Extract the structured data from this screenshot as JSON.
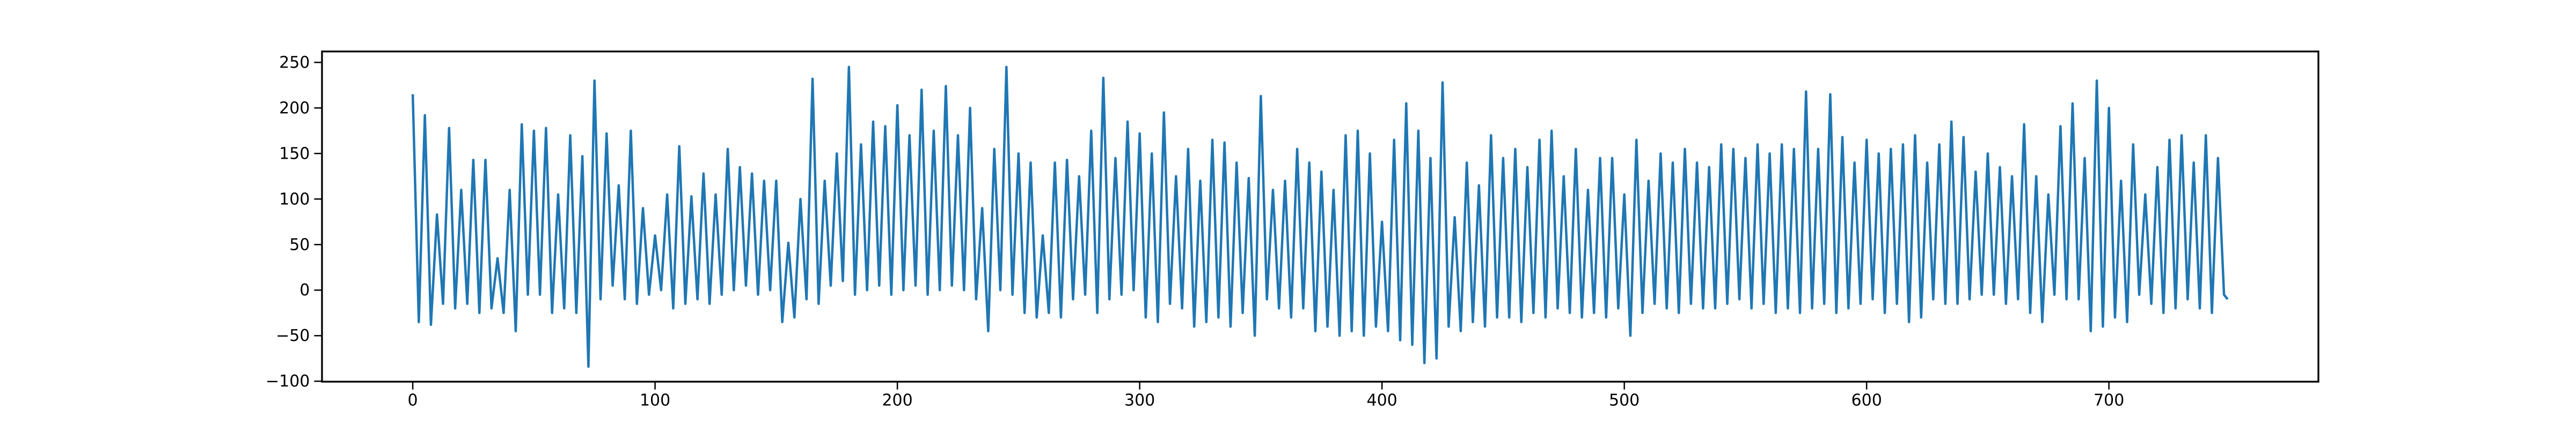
{
  "chart_data": {
    "type": "line",
    "x": [
      0,
      2.5,
      5,
      7.5,
      10,
      12.5,
      15,
      17.5,
      20,
      22.5,
      25,
      27.5,
      30,
      32.5,
      35,
      37.5,
      40,
      42.5,
      45,
      47.5,
      50,
      52.5,
      55,
      57.5,
      60,
      62.5,
      65,
      67.5,
      70,
      72.5,
      75,
      77.5,
      80,
      82.5,
      85,
      87.5,
      90,
      92.5,
      95,
      97.5,
      100,
      102.5,
      105,
      107.5,
      110,
      112.5,
      115,
      117.5,
      120,
      122.5,
      125,
      127.5,
      130,
      132.5,
      135,
      137.5,
      140,
      142.5,
      145,
      147.5,
      150,
      152.5,
      155,
      157.5,
      160,
      162.5,
      165,
      167.5,
      170,
      172.5,
      175,
      177.5,
      180,
      182.5,
      185,
      187.5,
      190,
      192.5,
      195,
      197.5,
      200,
      202.5,
      205,
      207.5,
      210,
      212.5,
      215,
      217.5,
      220,
      222.5,
      225,
      227.5,
      230,
      232.5,
      235,
      237.5,
      240,
      242.5,
      245,
      247.5,
      250,
      252.5,
      255,
      257.5,
      260,
      262.5,
      265,
      267.5,
      270,
      272.5,
      275,
      277.5,
      280,
      282.5,
      285,
      287.5,
      290,
      292.5,
      295,
      297.5,
      300,
      302.5,
      305,
      307.5,
      310,
      312.5,
      315,
      317.5,
      320,
      322.5,
      325,
      327.5,
      330,
      332.5,
      335,
      337.5,
      340,
      342.5,
      345,
      347.5,
      350,
      352.5,
      355,
      357.5,
      360,
      362.5,
      365,
      367.5,
      370,
      372.5,
      375,
      377.5,
      380,
      382.5,
      385,
      387.5,
      390,
      392.5,
      395,
      397.5,
      400,
      402.5,
      405,
      407.5,
      410,
      412.5,
      415,
      417.5,
      420,
      422.5,
      425,
      427.5,
      430,
      432.5,
      435,
      437.5,
      440,
      442.5,
      445,
      447.5,
      450,
      452.5,
      455,
      457.5,
      460,
      462.5,
      465,
      467.5,
      470,
      472.5,
      475,
      477.5,
      480,
      482.5,
      485,
      487.5,
      490,
      492.5,
      495,
      497.5,
      500,
      502.5,
      505,
      507.5,
      510,
      512.5,
      515,
      517.5,
      520,
      522.5,
      525,
      527.5,
      530,
      532.5,
      535,
      537.5,
      540,
      542.5,
      545,
      547.5,
      550,
      552.5,
      555,
      557.5,
      560,
      562.5,
      565,
      567.5,
      570,
      572.5,
      575,
      577.5,
      580,
      582.5,
      585,
      587.5,
      590,
      592.5,
      595,
      597.5,
      600,
      602.5,
      605,
      607.5,
      610,
      612.5,
      615,
      617.5,
      620,
      622.5,
      625,
      627.5,
      630,
      632.5,
      635,
      637.5,
      640,
      642.5,
      645,
      647.5,
      650,
      652.5,
      655,
      657.5,
      660,
      662.5,
      665,
      667.5,
      670,
      672.5,
      675,
      677.5,
      680,
      682.5,
      685,
      687.5,
      690,
      692.5,
      695,
      697.5,
      700,
      702.5,
      705,
      707.5,
      710,
      712.5,
      715,
      717.5,
      720,
      722.5,
      725,
      727.5,
      730,
      732.5,
      735,
      737.5,
      740,
      742.5,
      745,
      747.5,
      749
    ],
    "series": [
      {
        "color": "#1f77b4",
        "values": [
          215,
          -35,
          192,
          -38,
          83,
          -15,
          178,
          -20,
          110,
          -15,
          143,
          -25,
          143,
          -20,
          35,
          -25,
          110,
          -45,
          182,
          -5,
          175,
          -5,
          178,
          -25,
          105,
          -20,
          170,
          -25,
          147,
          -84,
          230,
          -10,
          172,
          5,
          115,
          -10,
          175,
          -15,
          90,
          -5,
          60,
          0,
          105,
          -20,
          158,
          -15,
          103,
          -10,
          128,
          -15,
          105,
          -5,
          155,
          0,
          135,
          5,
          128,
          -5,
          120,
          0,
          120,
          -35,
          52,
          -30,
          100,
          -10,
          232,
          -15,
          120,
          5,
          150,
          10,
          245,
          -5,
          160,
          0,
          185,
          5,
          180,
          -5,
          203,
          0,
          170,
          5,
          220,
          -5,
          175,
          0,
          224,
          5,
          170,
          0,
          200,
          -10,
          90,
          -45,
          155,
          0,
          245,
          -5,
          150,
          -25,
          140,
          -30,
          60,
          -25,
          140,
          -30,
          143,
          -10,
          125,
          -5,
          175,
          -25,
          233,
          -10,
          145,
          -5,
          185,
          0,
          172,
          -30,
          150,
          -35,
          195,
          -15,
          125,
          -20,
          155,
          -40,
          120,
          -35,
          165,
          -30,
          162,
          -40,
          140,
          -25,
          123,
          -50,
          213,
          -10,
          110,
          -20,
          120,
          -30,
          155,
          -20,
          140,
          -45,
          130,
          -40,
          110,
          -50,
          170,
          -45,
          175,
          -50,
          150,
          -40,
          75,
          -45,
          165,
          -55,
          205,
          -60,
          175,
          -80,
          145,
          -75,
          228,
          -40,
          80,
          -45,
          140,
          -35,
          115,
          -40,
          170,
          -30,
          145,
          -30,
          155,
          -35,
          135,
          -25,
          165,
          -30,
          175,
          -20,
          125,
          -25,
          155,
          -30,
          110,
          -25,
          145,
          -30,
          145,
          -20,
          105,
          -50,
          165,
          -25,
          120,
          -15,
          150,
          -20,
          140,
          -25,
          155,
          -15,
          140,
          -20,
          135,
          -20,
          160,
          -15,
          155,
          -10,
          145,
          -20,
          160,
          -15,
          150,
          -25,
          160,
          -20,
          155,
          -25,
          218,
          -20,
          155,
          -15,
          215,
          -25,
          168,
          -20,
          140,
          -15,
          165,
          -10,
          150,
          -25,
          155,
          -15,
          160,
          -35,
          170,
          -30,
          140,
          -10,
          160,
          -15,
          185,
          -15,
          168,
          -10,
          130,
          -5,
          150,
          -5,
          135,
          -15,
          125,
          -10,
          182,
          -25,
          125,
          -35,
          105,
          -5,
          180,
          -10,
          205,
          -10,
          145,
          -45,
          230,
          -40,
          200,
          -30,
          120,
          -35,
          160,
          -5,
          105,
          -15,
          135,
          -25,
          165,
          -20,
          170,
          -10,
          140,
          -20,
          170,
          -25,
          145,
          -5,
          -10
        ]
      }
    ],
    "xlim": [
      -37.45,
      786.45
    ],
    "ylim": [
      -100.5,
      262
    ],
    "xticks": [
      0,
      100,
      200,
      300,
      400,
      500,
      600,
      700
    ],
    "yticks": [
      {
        "value": -100,
        "label": "−100"
      },
      {
        "value": -50,
        "label": "−50"
      },
      0,
      50,
      100,
      150,
      200,
      250
    ],
    "grid": false
  }
}
